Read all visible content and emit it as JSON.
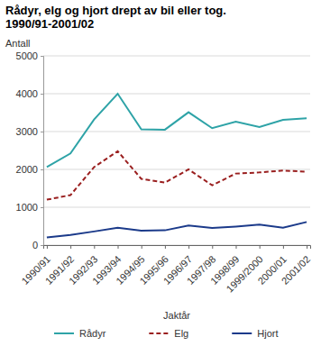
{
  "chart_data": {
    "type": "line",
    "title": "Rådyr, elg og hjort drept av bil eller tog. 1990/91-2001/02",
    "x_label": "Jaktår",
    "y_label": "Antall",
    "categories": [
      "1990/91",
      "1991/92",
      "1992/93",
      "1993/94",
      "1994/95",
      "1995/96",
      "1996/97",
      "1997/98",
      "1998/99",
      "1999/2000",
      "2000/01",
      "2001/02"
    ],
    "series": [
      {
        "name": "Rådyr",
        "color": "#2ea3a7",
        "line_style": "solid",
        "values": [
          2060,
          2420,
          3320,
          4000,
          3060,
          3050,
          3510,
          3090,
          3260,
          3120,
          3310,
          3350
        ]
      },
      {
        "name": "Elg",
        "color": "#9a1f1f",
        "line_style": "dashed",
        "values": [
          1200,
          1320,
          2060,
          2480,
          1750,
          1650,
          2000,
          1580,
          1890,
          1920,
          1970,
          1940
        ]
      },
      {
        "name": "Hjort",
        "color": "#1b3a8a",
        "line_style": "solid",
        "values": [
          200,
          270,
          360,
          460,
          380,
          390,
          520,
          450,
          490,
          540,
          460,
          610
        ]
      }
    ],
    "ylim": [
      0,
      5000
    ],
    "yticks": [
      0,
      1000,
      2000,
      3000,
      4000,
      5000
    ],
    "grid": true,
    "legend": "bottom"
  }
}
